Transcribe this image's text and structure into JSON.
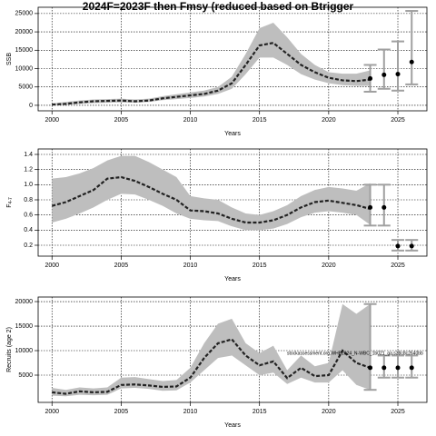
{
  "chart_data": [
    {
      "type": "line",
      "title": "2024F=2023F then Fmsy (reduced based on Btrigger",
      "xlabel": "Years",
      "ylabel": "SSB",
      "x": [
        2000,
        2001,
        2002,
        2003,
        2004,
        2005,
        2006,
        2007,
        2008,
        2009,
        2010,
        2011,
        2012,
        2013,
        2014,
        2015,
        2016,
        2017,
        2018,
        2019,
        2020,
        2021,
        2022,
        2023
      ],
      "estimate": {
        "color": "#222222",
        "values": [
          200,
          400,
          800,
          1100,
          1200,
          1300,
          1100,
          1300,
          1900,
          2300,
          2700,
          3100,
          4000,
          6000,
          11000,
          16300,
          17000,
          14000,
          11000,
          9000,
          7500,
          6800,
          6600,
          7000
        ]
      },
      "band": {
        "color": "#bebebe",
        "lower": [
          0,
          100,
          400,
          600,
          700,
          800,
          700,
          900,
          1400,
          1700,
          2000,
          2400,
          3100,
          4500,
          8500,
          13000,
          13000,
          11000,
          8500,
          7000,
          6000,
          5500,
          5300,
          5300
        ],
        "upper": [
          500,
          900,
          1300,
          1600,
          1700,
          1800,
          1600,
          1800,
          2500,
          3000,
          3500,
          4000,
          5000,
          7800,
          14000,
          21000,
          22500,
          18500,
          14000,
          11000,
          9000,
          8600,
          8600,
          9500
        ]
      },
      "projection": {
        "color": "#000000",
        "bar_color": "#a0a0a0",
        "x": [
          2023,
          2024,
          2025,
          2026
        ],
        "values": [
          7300,
          8300,
          8500,
          11800
        ],
        "lower": [
          3700,
          4500,
          4000,
          5700
        ],
        "upper": [
          11000,
          15200,
          17400,
          25700
        ]
      },
      "xlim": [
        1999,
        2027.1
      ],
      "xticks": [
        2000,
        2005,
        2010,
        2015,
        2020,
        2025
      ],
      "ylim": [
        -1500,
        26700
      ],
      "yticks": [
        0,
        5000,
        10000,
        15000,
        20000,
        25000
      ],
      "grid": true
    },
    {
      "type": "line",
      "xlabel": "Years",
      "ylabel": "F",
      "ylabel_subscript": "4-7",
      "x": [
        2000,
        2001,
        2002,
        2003,
        2004,
        2005,
        2006,
        2007,
        2008,
        2009,
        2010,
        2011,
        2012,
        2013,
        2014,
        2015,
        2016,
        2017,
        2018,
        2019,
        2020,
        2021,
        2022,
        2023
      ],
      "estimate": {
        "color": "#222222",
        "values": [
          0.72,
          0.77,
          0.85,
          0.93,
          1.08,
          1.1,
          1.05,
          0.97,
          0.88,
          0.8,
          0.66,
          0.65,
          0.62,
          0.55,
          0.5,
          0.5,
          0.53,
          0.6,
          0.7,
          0.77,
          0.79,
          0.76,
          0.73,
          0.68
        ]
      },
      "band": {
        "color": "#bebebe",
        "lower": [
          0.5,
          0.55,
          0.62,
          0.7,
          0.8,
          0.88,
          0.87,
          0.8,
          0.72,
          0.62,
          0.55,
          0.53,
          0.52,
          0.45,
          0.4,
          0.4,
          0.42,
          0.48,
          0.57,
          0.63,
          0.65,
          0.63,
          0.6,
          0.47
        ],
        "upper": [
          1.08,
          1.1,
          1.15,
          1.22,
          1.32,
          1.38,
          1.38,
          1.3,
          1.2,
          1.1,
          0.85,
          0.82,
          0.8,
          0.7,
          0.62,
          0.6,
          0.65,
          0.73,
          0.85,
          0.93,
          0.97,
          0.95,
          0.92,
          1.02
        ]
      },
      "projection": {
        "color": "#000000",
        "bar_color": "#a0a0a0",
        "x": [
          2023,
          2024,
          2025,
          2026
        ],
        "values": [
          0.7,
          0.7,
          0.19,
          0.19
        ],
        "lower": [
          0.46,
          0.46,
          0.13,
          0.13
        ],
        "upper": [
          1.0,
          1.0,
          0.27,
          0.27
        ]
      },
      "xlim": [
        1999,
        2027.1
      ],
      "xticks": [
        2000,
        2005,
        2010,
        2015,
        2020,
        2025
      ],
      "ylim": [
        0.056,
        1.472
      ],
      "yticks": [
        0.2,
        0.4,
        0.6,
        0.8,
        {
          "value": 1,
          "label": "1.0"
        },
        1.2,
        1.4
      ],
      "grid": true
    },
    {
      "type": "line",
      "xlabel": "Years",
      "ylabel": "Recruits (age 2)",
      "annotation": "stockassessment.org,WHB2024_N-WBC_1b021_ga.s38c8c2640bb",
      "x": [
        2000,
        2001,
        2002,
        2003,
        2004,
        2005,
        2006,
        2007,
        2008,
        2009,
        2010,
        2011,
        2012,
        2013,
        2014,
        2015,
        2016,
        2017,
        2018,
        2019,
        2020,
        2021,
        2022,
        2023
      ],
      "estimate": {
        "color": "#222222",
        "values": [
          1500,
          1200,
          1700,
          1500,
          1600,
          3000,
          3100,
          2900,
          2600,
          2700,
          4500,
          8500,
          11500,
          12300,
          9000,
          7000,
          7800,
          4400,
          6500,
          4800,
          5000,
          10000,
          7500,
          6500
        ]
      },
      "band": {
        "color": "#bebebe",
        "lower": [
          800,
          700,
          1000,
          900,
          1000,
          2300,
          2400,
          2200,
          1800,
          1900,
          3500,
          6000,
          8500,
          9000,
          7000,
          5000,
          5500,
          3200,
          4500,
          3500,
          3500,
          6000,
          3000,
          2000
        ],
        "upper": [
          2400,
          2000,
          2500,
          2300,
          2500,
          4500,
          4600,
          4200,
          3800,
          4000,
          6500,
          11500,
          15500,
          16500,
          11500,
          9500,
          11000,
          6000,
          9000,
          6800,
          7500,
          19500,
          17500,
          19500
        ]
      },
      "projection": {
        "color": "#000000",
        "bar_color": "#a0a0a0",
        "x": [
          2023,
          2024,
          2025,
          2026
        ],
        "values": [
          6500,
          6500,
          6500,
          6500
        ],
        "lower": [
          2000,
          4500,
          4500,
          4500
        ],
        "upper": [
          19500,
          9000,
          9000,
          9000
        ]
      },
      "xlim": [
        1999,
        2027.1
      ],
      "xticks": [
        2000,
        2005,
        2010,
        2015,
        2020,
        2025
      ],
      "ylim": [
        -556,
        20930
      ],
      "yticks": [
        5000,
        10000,
        15000,
        20000
      ],
      "grid": true
    }
  ]
}
